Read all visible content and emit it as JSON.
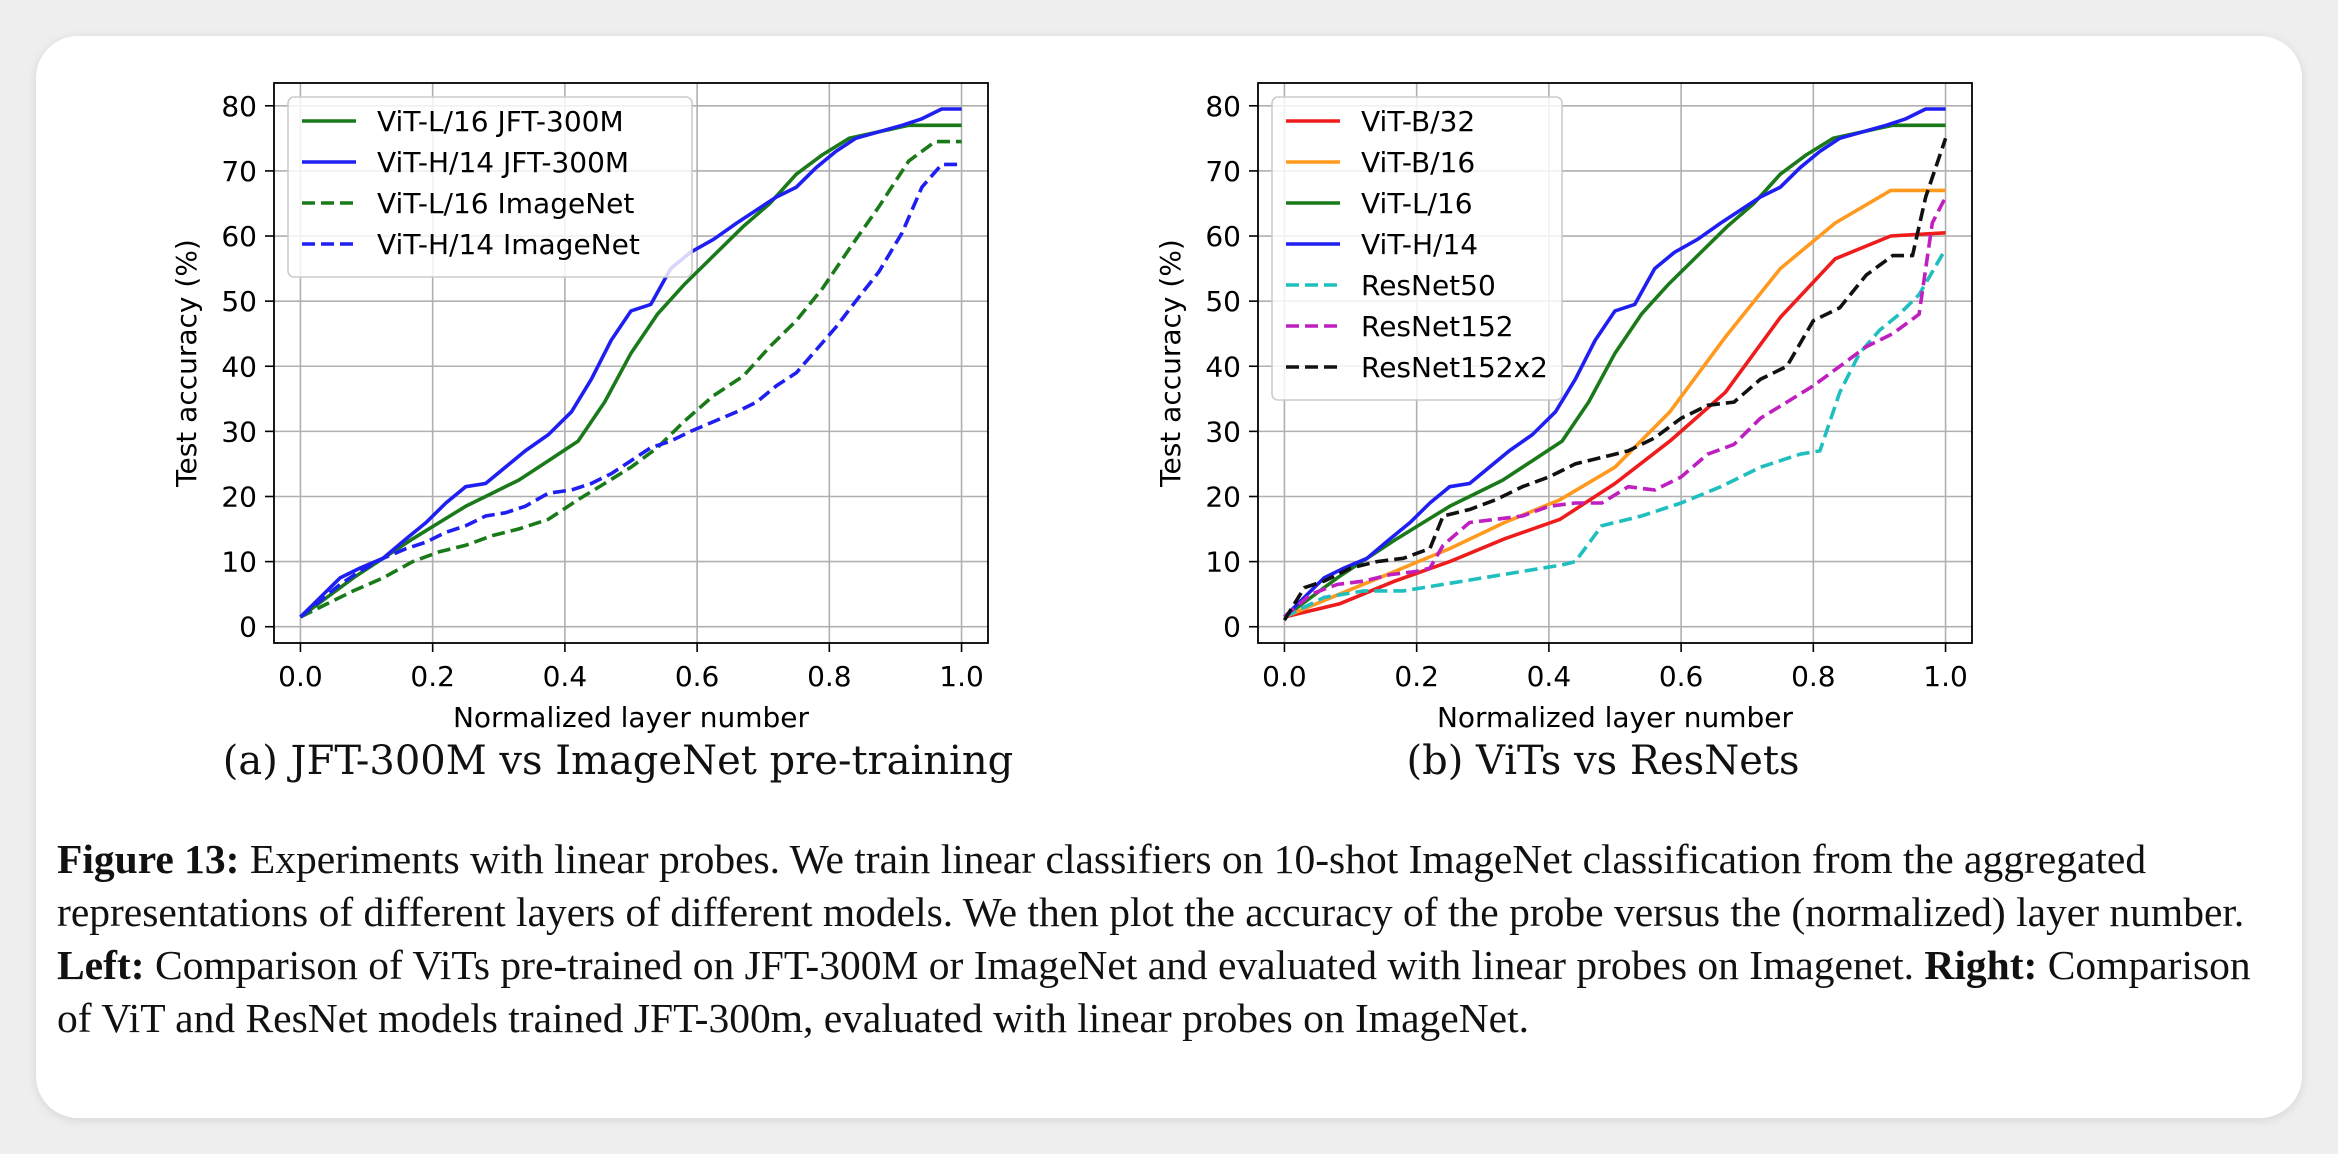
{
  "subfigures": {
    "a": "(a) JFT-300M vs ImageNet pre-training",
    "b": "(b) ViTs vs ResNets"
  },
  "caption": {
    "label": "Figure 13:",
    "text1": " Experiments with linear probes. We train linear classifiers on 10-shot ImageNet classification from the aggregated representations of different layers of different models. We then plot the accuracy of the probe versus the (normalized) layer number. ",
    "left_label": "Left:",
    "text2": " Comparison of ViTs pre-trained on JFT-300M or ImageNet and evaluated with linear probes on Imagenet. ",
    "right_label": "Right:",
    "text3": " Comparison of ViT and ResNet models trained JFT-300m, evaluated with linear probes on ImageNet."
  },
  "chart_data": [
    {
      "type": "line",
      "xlabel": "Normalized layer number",
      "ylabel": "Test accuracy (%)",
      "xlim": [
        -0.04,
        1.04
      ],
      "ylim": [
        -2.5,
        83.5
      ],
      "xticks": [
        0.0,
        0.2,
        0.4,
        0.6,
        0.8,
        1.0
      ],
      "xtick_labels": [
        "0.0",
        "0.2",
        "0.4",
        "0.6",
        "0.8",
        "1.0"
      ],
      "yticks": [
        0,
        10,
        20,
        30,
        40,
        50,
        60,
        70,
        80
      ],
      "grid": true,
      "legend_position": "upper-left",
      "series": [
        {
          "name": "ViT-L/16 JFT-300M",
          "color": "#1a7a1a",
          "dash": "solid",
          "x": [
            0.0,
            0.04,
            0.08,
            0.125,
            0.17,
            0.21,
            0.25,
            0.29,
            0.33,
            0.375,
            0.42,
            0.46,
            0.5,
            0.54,
            0.58,
            0.625,
            0.67,
            0.71,
            0.75,
            0.79,
            0.83,
            0.875,
            0.92,
            0.96,
            1.0
          ],
          "y": [
            1.5,
            4.5,
            7.5,
            10.5,
            13.5,
            16,
            18.5,
            20.5,
            22.5,
            25.5,
            28.5,
            34.5,
            42,
            48,
            52.5,
            57,
            61.5,
            65,
            69.5,
            72.5,
            75,
            76,
            77,
            77,
            77
          ]
        },
        {
          "name": "ViT-H/14 JFT-300M",
          "color": "#1f1ff2",
          "dash": "solid",
          "x": [
            0.0,
            0.03,
            0.06,
            0.09,
            0.125,
            0.16,
            0.19,
            0.22,
            0.25,
            0.28,
            0.31,
            0.34,
            0.375,
            0.41,
            0.44,
            0.47,
            0.5,
            0.53,
            0.56,
            0.59,
            0.625,
            0.66,
            0.69,
            0.72,
            0.75,
            0.78,
            0.81,
            0.84,
            0.875,
            0.91,
            0.94,
            0.97,
            1.0
          ],
          "y": [
            1.5,
            4.5,
            7.5,
            9,
            10.5,
            13.5,
            16,
            19,
            21.5,
            22,
            24.5,
            27,
            29.5,
            33,
            38,
            44,
            48.5,
            49.5,
            55,
            57.5,
            59.5,
            62,
            64,
            66,
            67.5,
            70.5,
            73,
            75,
            76,
            77,
            78,
            79.5,
            79.5
          ]
        },
        {
          "name": "ViT-L/16 ImageNet",
          "color": "#1a7a1a",
          "dash": "dashed",
          "x": [
            0.0,
            0.04,
            0.08,
            0.125,
            0.17,
            0.21,
            0.25,
            0.29,
            0.33,
            0.375,
            0.42,
            0.46,
            0.5,
            0.54,
            0.58,
            0.625,
            0.67,
            0.71,
            0.75,
            0.79,
            0.83,
            0.875,
            0.92,
            0.96,
            1.0
          ],
          "y": [
            1.5,
            3.5,
            5.5,
            7.5,
            10,
            11.5,
            12.5,
            14,
            15,
            16.5,
            19.5,
            22,
            24.5,
            27.5,
            31.5,
            35.5,
            38.5,
            43,
            47,
            52,
            58,
            64.5,
            71.5,
            74.5,
            74.5
          ]
        },
        {
          "name": "ViT-H/14 ImageNet",
          "color": "#1f1ff2",
          "dash": "dashed",
          "x": [
            0.0,
            0.03,
            0.06,
            0.09,
            0.125,
            0.16,
            0.19,
            0.22,
            0.25,
            0.28,
            0.31,
            0.34,
            0.375,
            0.41,
            0.44,
            0.47,
            0.5,
            0.53,
            0.56,
            0.59,
            0.625,
            0.66,
            0.69,
            0.72,
            0.75,
            0.78,
            0.81,
            0.84,
            0.875,
            0.91,
            0.94,
            0.97,
            1.0
          ],
          "y": [
            1.5,
            4,
            6.5,
            8.5,
            10.5,
            12,
            13,
            14.5,
            15.5,
            17,
            17.5,
            18.5,
            20.5,
            21,
            22,
            23.5,
            25.5,
            27.5,
            28.5,
            30,
            31.5,
            33,
            34.5,
            37,
            39,
            42.5,
            46,
            50,
            54.5,
            60.5,
            67.5,
            71,
            71
          ]
        }
      ]
    },
    {
      "type": "line",
      "xlabel": "Normalized layer number",
      "ylabel": "Test accuracy (%)",
      "xlim": [
        -0.04,
        1.04
      ],
      "ylim": [
        -2.5,
        83.5
      ],
      "xticks": [
        0.0,
        0.2,
        0.4,
        0.6,
        0.8,
        1.0
      ],
      "xtick_labels": [
        "0.0",
        "0.2",
        "0.4",
        "0.6",
        "0.8",
        "1.0"
      ],
      "yticks": [
        0,
        10,
        20,
        30,
        40,
        50,
        60,
        70,
        80
      ],
      "grid": true,
      "legend_position": "upper-left",
      "series": [
        {
          "name": "ViT-B/32",
          "color": "#ee1c1c",
          "dash": "solid",
          "x": [
            0.0,
            0.083,
            0.167,
            0.25,
            0.333,
            0.417,
            0.5,
            0.583,
            0.667,
            0.75,
            0.833,
            0.917,
            1.0
          ],
          "y": [
            1.5,
            3.5,
            7,
            10,
            13.5,
            16.5,
            22,
            28.5,
            36,
            47.5,
            56.5,
            60,
            60.5
          ]
        },
        {
          "name": "ViT-B/16",
          "color": "#ff9a1f",
          "dash": "solid",
          "x": [
            0.0,
            0.083,
            0.167,
            0.25,
            0.333,
            0.417,
            0.5,
            0.583,
            0.667,
            0.75,
            0.833,
            0.917,
            1.0
          ],
          "y": [
            1.5,
            5,
            8.5,
            12,
            16,
            19.5,
            24.5,
            33,
            44.5,
            55,
            62,
            67,
            67
          ]
        },
        {
          "name": "ViT-L/16",
          "color": "#1a7a1a",
          "dash": "solid",
          "x": [
            0.0,
            0.04,
            0.08,
            0.125,
            0.17,
            0.21,
            0.25,
            0.29,
            0.33,
            0.375,
            0.42,
            0.46,
            0.5,
            0.54,
            0.58,
            0.625,
            0.67,
            0.71,
            0.75,
            0.79,
            0.83,
            0.875,
            0.92,
            0.96,
            1.0
          ],
          "y": [
            1.5,
            4.5,
            7.5,
            10.5,
            13.5,
            16,
            18.5,
            20.5,
            22.5,
            25.5,
            28.5,
            34.5,
            42,
            48,
            52.5,
            57,
            61.5,
            65,
            69.5,
            72.5,
            75,
            76,
            77,
            77,
            77
          ]
        },
        {
          "name": "ViT-H/14",
          "color": "#1f1ff2",
          "dash": "solid",
          "x": [
            0.0,
            0.03,
            0.06,
            0.09,
            0.125,
            0.16,
            0.19,
            0.22,
            0.25,
            0.28,
            0.31,
            0.34,
            0.375,
            0.41,
            0.44,
            0.47,
            0.5,
            0.53,
            0.56,
            0.59,
            0.625,
            0.66,
            0.69,
            0.72,
            0.75,
            0.78,
            0.81,
            0.84,
            0.875,
            0.91,
            0.94,
            0.97,
            1.0
          ],
          "y": [
            1.5,
            4.5,
            7.5,
            9,
            10.5,
            13.5,
            16,
            19,
            21.5,
            22,
            24.5,
            27,
            29.5,
            33,
            38,
            44,
            48.5,
            49.5,
            55,
            57.5,
            59.5,
            62,
            64,
            66,
            67.5,
            70.5,
            73,
            75,
            76,
            77,
            78,
            79.5,
            79.5
          ]
        },
        {
          "name": "ResNet50",
          "color": "#1fbfbf",
          "dash": "dashed",
          "x": [
            0.0,
            0.06,
            0.12,
            0.18,
            0.24,
            0.3,
            0.36,
            0.42,
            0.44,
            0.48,
            0.54,
            0.6,
            0.66,
            0.72,
            0.78,
            0.81,
            0.84,
            0.87,
            0.9,
            0.93,
            0.96,
            1.0
          ],
          "y": [
            1.5,
            4.5,
            5.5,
            5.5,
            6.5,
            7.5,
            8.5,
            9.5,
            10,
            15.5,
            17,
            19,
            21.5,
            24.5,
            26.5,
            27,
            36,
            42,
            45.5,
            48,
            51,
            58
          ]
        },
        {
          "name": "ResNet152",
          "color": "#bf1fbf",
          "dash": "dashed",
          "x": [
            0.0,
            0.04,
            0.08,
            0.12,
            0.16,
            0.2,
            0.22,
            0.24,
            0.28,
            0.32,
            0.36,
            0.4,
            0.44,
            0.48,
            0.52,
            0.56,
            0.6,
            0.64,
            0.68,
            0.72,
            0.76,
            0.8,
            0.84,
            0.88,
            0.92,
            0.96,
            0.98,
            1.0
          ],
          "y": [
            1.5,
            5,
            6.5,
            7,
            8,
            8.5,
            9,
            12.5,
            16,
            16.5,
            17,
            18.5,
            19,
            19,
            21.5,
            21,
            23,
            26.5,
            28,
            32,
            34.5,
            37,
            40,
            43,
            45,
            48,
            62,
            66
          ]
        },
        {
          "name": "ResNet152x2",
          "color": "#111111",
          "dash": "dashed",
          "x": [
            0.0,
            0.03,
            0.06,
            0.1,
            0.14,
            0.18,
            0.22,
            0.24,
            0.28,
            0.32,
            0.36,
            0.4,
            0.44,
            0.48,
            0.52,
            0.56,
            0.6,
            0.64,
            0.68,
            0.72,
            0.76,
            0.8,
            0.84,
            0.88,
            0.92,
            0.95,
            0.97,
            1.0
          ],
          "y": [
            1,
            6,
            7,
            9,
            10,
            10.5,
            12,
            17,
            18,
            19.5,
            21.5,
            23,
            25,
            26,
            27,
            29,
            32,
            34,
            34.5,
            38,
            40,
            47,
            49,
            54,
            57,
            57,
            66,
            75
          ]
        }
      ]
    }
  ]
}
